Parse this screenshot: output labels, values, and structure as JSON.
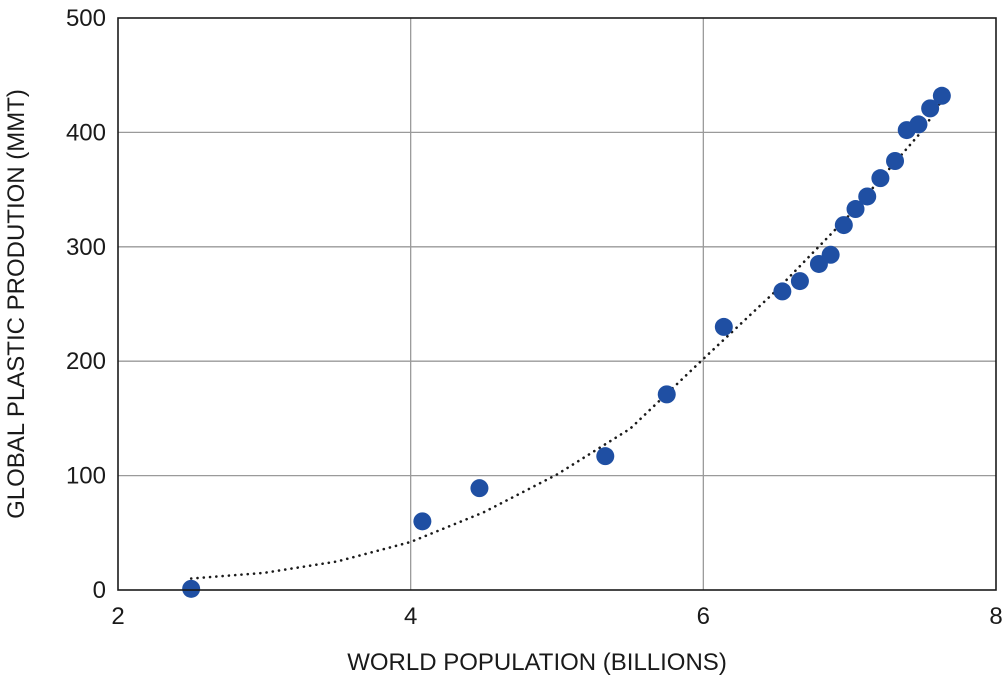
{
  "chart_data": {
    "type": "scatter",
    "title": "",
    "xlabel": "WORLD POPULATION (BILLIONS)",
    "ylabel": "GLOBAL PLASTIC PRODUTION (MMT)",
    "xlim": [
      2,
      8
    ],
    "ylim": [
      0,
      500
    ],
    "xticks": [
      2,
      4,
      6,
      8
    ],
    "yticks": [
      0,
      100,
      200,
      300,
      400,
      500
    ],
    "grid": true,
    "legend": "none",
    "colors": {
      "points": "#1f4fa3",
      "trendline": "#1a1a1a",
      "grid": "#9a9a9a",
      "axis": "#1a1a1a"
    },
    "series": [
      {
        "values": [
          {
            "x": 2.5,
            "y": 1
          },
          {
            "x": 4.08,
            "y": 60
          },
          {
            "x": 4.47,
            "y": 89
          },
          {
            "x": 5.33,
            "y": 117
          },
          {
            "x": 5.75,
            "y": 171
          },
          {
            "x": 6.14,
            "y": 230
          },
          {
            "x": 6.54,
            "y": 261
          },
          {
            "x": 6.66,
            "y": 270
          },
          {
            "x": 6.79,
            "y": 285
          },
          {
            "x": 6.87,
            "y": 293
          },
          {
            "x": 6.96,
            "y": 319
          },
          {
            "x": 7.04,
            "y": 333
          },
          {
            "x": 7.12,
            "y": 344
          },
          {
            "x": 7.21,
            "y": 360
          },
          {
            "x": 7.31,
            "y": 375
          },
          {
            "x": 7.39,
            "y": 402
          },
          {
            "x": 7.47,
            "y": 407
          },
          {
            "x": 7.55,
            "y": 421
          },
          {
            "x": 7.63,
            "y": 432
          }
        ]
      }
    ],
    "trendline": {
      "type": "polynomial",
      "style": "dotted",
      "x_range": [
        2.5,
        7.63
      ],
      "points": [
        {
          "x": 2.5,
          "y": 10
        },
        {
          "x": 3.0,
          "y": 15
        },
        {
          "x": 3.5,
          "y": 25
        },
        {
          "x": 4.0,
          "y": 42
        },
        {
          "x": 4.5,
          "y": 68
        },
        {
          "x": 5.0,
          "y": 101
        },
        {
          "x": 5.5,
          "y": 141
        },
        {
          "x": 6.0,
          "y": 202
        },
        {
          "x": 6.5,
          "y": 262
        },
        {
          "x": 7.0,
          "y": 328
        },
        {
          "x": 7.5,
          "y": 402
        },
        {
          "x": 7.63,
          "y": 428
        }
      ]
    }
  }
}
